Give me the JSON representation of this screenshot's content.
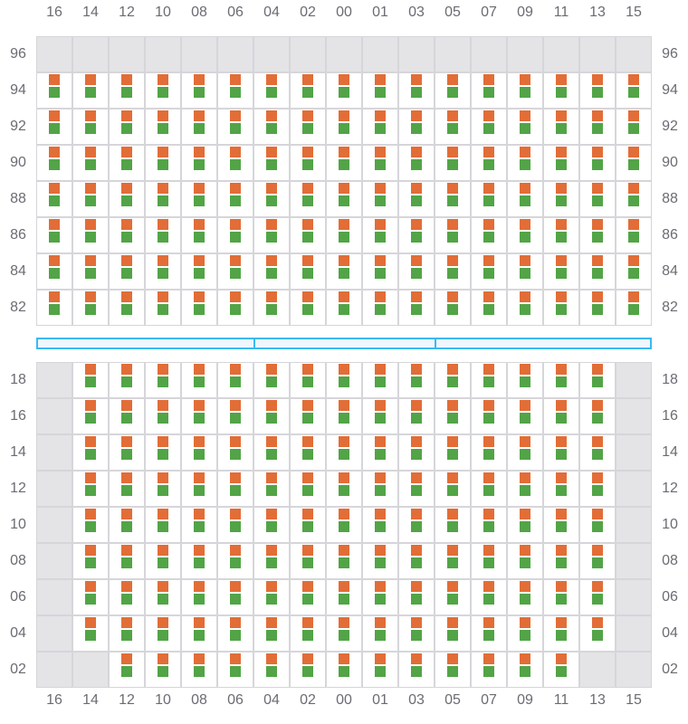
{
  "columns": [
    "16",
    "14",
    "12",
    "10",
    "08",
    "06",
    "04",
    "02",
    "00",
    "01",
    "03",
    "05",
    "07",
    "09",
    "11",
    "13",
    "15"
  ],
  "top_section": {
    "rows": [
      "96",
      "94",
      "92",
      "90",
      "88",
      "86",
      "84",
      "82"
    ],
    "unavailable": {
      "96": [
        "16",
        "14",
        "12",
        "10",
        "08",
        "06",
        "04",
        "02",
        "00",
        "01",
        "03",
        "05",
        "07",
        "09",
        "11",
        "13",
        "15"
      ]
    }
  },
  "divider_segments": 3,
  "bottom_section": {
    "rows": [
      "18",
      "16",
      "14",
      "12",
      "10",
      "08",
      "06",
      "04",
      "02"
    ],
    "unavailable": {
      "18": [
        "16",
        "15"
      ],
      "16": [
        "16",
        "15"
      ],
      "14": [
        "16",
        "15"
      ],
      "12": [
        "16",
        "15"
      ],
      "10": [
        "16",
        "15"
      ],
      "08": [
        "16",
        "15"
      ],
      "06": [
        "16",
        "15"
      ],
      "04": [
        "16",
        "15"
      ],
      "02": [
        "16",
        "14",
        "13",
        "15"
      ]
    }
  },
  "colors": {
    "indicator_top": "#e26d37",
    "indicator_bottom": "#52a447",
    "unavailable": "#e4e4e7",
    "divider": "#3bb9f0"
  }
}
